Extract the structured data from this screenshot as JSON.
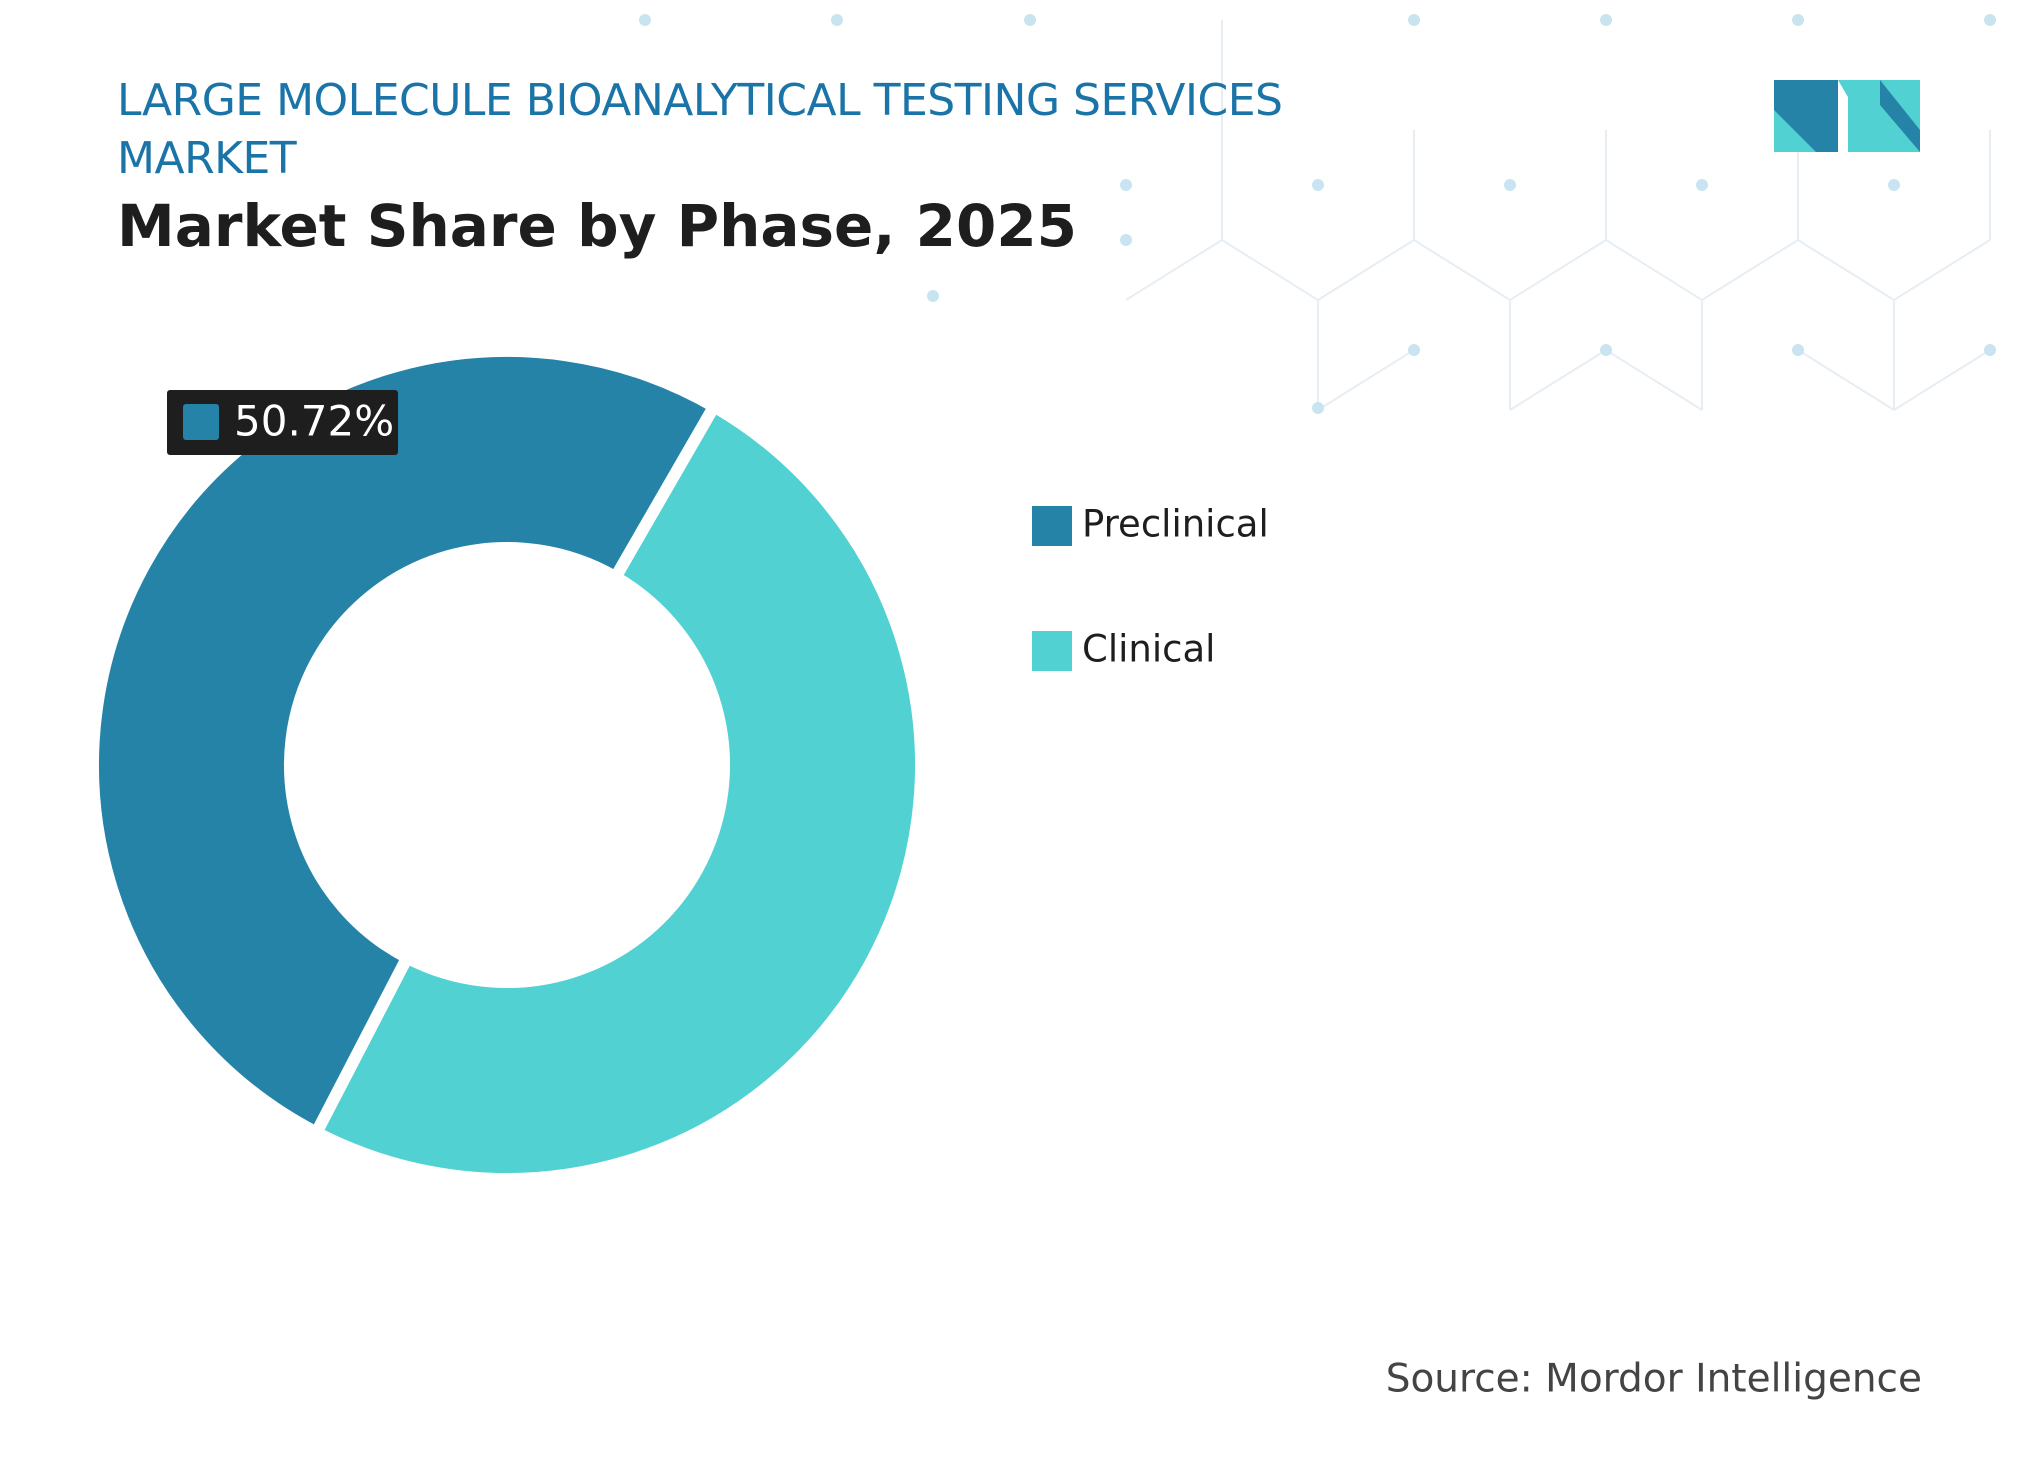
{
  "chart_data": {
    "type": "donut",
    "title": "LARGE MOLECULE BIOANALYTICAL TESTING SERVICES MARKET",
    "subtitle": "Market Share by Phase, 2025",
    "categories": [
      "Preclinical",
      "Clinical"
    ],
    "values": [
      50.72,
      49.28
    ],
    "value_labels": [
      "50.72%",
      null
    ],
    "colors": [
      "#2683a8",
      "#52d1d3"
    ],
    "source": "Source: Mordor Intelligence"
  }
}
